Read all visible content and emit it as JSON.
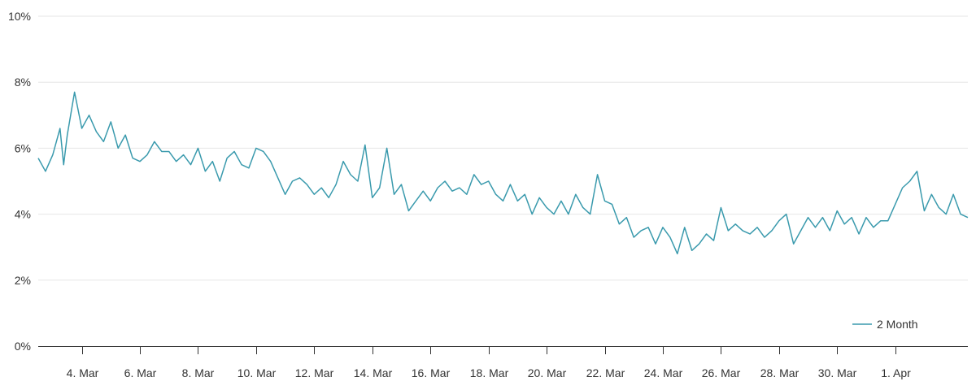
{
  "chart_data": {
    "type": "line",
    "title": "",
    "xlabel": "",
    "ylabel": "",
    "x_range": [
      "2024-03-02T12:00",
      "2024-04-03T12:00"
    ],
    "ylim": [
      0,
      10
    ],
    "y_ticks": [
      {
        "value": 0,
        "label": "0%"
      },
      {
        "value": 2,
        "label": "2%"
      },
      {
        "value": 4,
        "label": "4%"
      },
      {
        "value": 6,
        "label": "6%"
      },
      {
        "value": 8,
        "label": "8%"
      },
      {
        "value": 10,
        "label": "10%"
      }
    ],
    "x_ticks": [
      {
        "date": "2024-03-04",
        "label": "4. Mar"
      },
      {
        "date": "2024-03-06",
        "label": "6. Mar"
      },
      {
        "date": "2024-03-08",
        "label": "8. Mar"
      },
      {
        "date": "2024-03-10",
        "label": "10. Mar"
      },
      {
        "date": "2024-03-12",
        "label": "12. Mar"
      },
      {
        "date": "2024-03-14",
        "label": "14. Mar"
      },
      {
        "date": "2024-03-16",
        "label": "16. Mar"
      },
      {
        "date": "2024-03-18",
        "label": "18. Mar"
      },
      {
        "date": "2024-03-20",
        "label": "20. Mar"
      },
      {
        "date": "2024-03-22",
        "label": "22. Mar"
      },
      {
        "date": "2024-03-24",
        "label": "24. Mar"
      },
      {
        "date": "2024-03-26",
        "label": "26. Mar"
      },
      {
        "date": "2024-03-28",
        "label": "28. Mar"
      },
      {
        "date": "2024-03-30",
        "label": "30. Mar"
      },
      {
        "date": "2024-04-01",
        "label": "1. Apr"
      }
    ],
    "grid": true,
    "legend": {
      "position": "bottom-right"
    },
    "series": [
      {
        "name": "2 Month",
        "color": "#3a9aad",
        "points": [
          [
            "2024-03-02T12:00",
            5.7
          ],
          [
            "2024-03-02T18:00",
            5.3
          ],
          [
            "2024-03-03T00:00",
            5.8
          ],
          [
            "2024-03-03T06:00",
            6.6
          ],
          [
            "2024-03-03T09:00",
            5.5
          ],
          [
            "2024-03-03T12:00",
            6.4
          ],
          [
            "2024-03-03T18:00",
            7.7
          ],
          [
            "2024-03-04T00:00",
            6.6
          ],
          [
            "2024-03-04T06:00",
            7.0
          ],
          [
            "2024-03-04T12:00",
            6.5
          ],
          [
            "2024-03-04T18:00",
            6.2
          ],
          [
            "2024-03-05T00:00",
            6.8
          ],
          [
            "2024-03-05T06:00",
            6.0
          ],
          [
            "2024-03-05T12:00",
            6.4
          ],
          [
            "2024-03-05T18:00",
            5.7
          ],
          [
            "2024-03-06T00:00",
            5.6
          ],
          [
            "2024-03-06T06:00",
            5.8
          ],
          [
            "2024-03-06T12:00",
            6.2
          ],
          [
            "2024-03-06T18:00",
            5.9
          ],
          [
            "2024-03-07T00:00",
            5.9
          ],
          [
            "2024-03-07T06:00",
            5.6
          ],
          [
            "2024-03-07T12:00",
            5.8
          ],
          [
            "2024-03-07T18:00",
            5.5
          ],
          [
            "2024-03-08T00:00",
            6.0
          ],
          [
            "2024-03-08T06:00",
            5.3
          ],
          [
            "2024-03-08T12:00",
            5.6
          ],
          [
            "2024-03-08T18:00",
            5.0
          ],
          [
            "2024-03-09T00:00",
            5.7
          ],
          [
            "2024-03-09T06:00",
            5.9
          ],
          [
            "2024-03-09T12:00",
            5.5
          ],
          [
            "2024-03-09T18:00",
            5.4
          ],
          [
            "2024-03-10T00:00",
            6.0
          ],
          [
            "2024-03-10T06:00",
            5.9
          ],
          [
            "2024-03-10T12:00",
            5.6
          ],
          [
            "2024-03-10T18:00",
            5.1
          ],
          [
            "2024-03-11T00:00",
            4.6
          ],
          [
            "2024-03-11T06:00",
            5.0
          ],
          [
            "2024-03-11T12:00",
            5.1
          ],
          [
            "2024-03-11T18:00",
            4.9
          ],
          [
            "2024-03-12T00:00",
            4.6
          ],
          [
            "2024-03-12T06:00",
            4.8
          ],
          [
            "2024-03-12T12:00",
            4.5
          ],
          [
            "2024-03-12T18:00",
            4.9
          ],
          [
            "2024-03-13T00:00",
            5.6
          ],
          [
            "2024-03-13T06:00",
            5.2
          ],
          [
            "2024-03-13T12:00",
            5.0
          ],
          [
            "2024-03-13T18:00",
            6.1
          ],
          [
            "2024-03-14T00:00",
            4.5
          ],
          [
            "2024-03-14T06:00",
            4.8
          ],
          [
            "2024-03-14T12:00",
            6.0
          ],
          [
            "2024-03-14T18:00",
            4.6
          ],
          [
            "2024-03-15T00:00",
            4.9
          ],
          [
            "2024-03-15T06:00",
            4.1
          ],
          [
            "2024-03-15T12:00",
            4.4
          ],
          [
            "2024-03-15T18:00",
            4.7
          ],
          [
            "2024-03-16T00:00",
            4.4
          ],
          [
            "2024-03-16T06:00",
            4.8
          ],
          [
            "2024-03-16T12:00",
            5.0
          ],
          [
            "2024-03-16T18:00",
            4.7
          ],
          [
            "2024-03-17T00:00",
            4.8
          ],
          [
            "2024-03-17T06:00",
            4.6
          ],
          [
            "2024-03-17T12:00",
            5.2
          ],
          [
            "2024-03-17T18:00",
            4.9
          ],
          [
            "2024-03-18T00:00",
            5.0
          ],
          [
            "2024-03-18T06:00",
            4.6
          ],
          [
            "2024-03-18T12:00",
            4.4
          ],
          [
            "2024-03-18T18:00",
            4.9
          ],
          [
            "2024-03-19T00:00",
            4.4
          ],
          [
            "2024-03-19T06:00",
            4.6
          ],
          [
            "2024-03-19T12:00",
            4.0
          ],
          [
            "2024-03-19T18:00",
            4.5
          ],
          [
            "2024-03-20T00:00",
            4.2
          ],
          [
            "2024-03-20T06:00",
            4.0
          ],
          [
            "2024-03-20T12:00",
            4.4
          ],
          [
            "2024-03-20T18:00",
            4.0
          ],
          [
            "2024-03-21T00:00",
            4.6
          ],
          [
            "2024-03-21T06:00",
            4.2
          ],
          [
            "2024-03-21T12:00",
            4.0
          ],
          [
            "2024-03-21T18:00",
            5.2
          ],
          [
            "2024-03-22T00:00",
            4.4
          ],
          [
            "2024-03-22T06:00",
            4.3
          ],
          [
            "2024-03-22T12:00",
            3.7
          ],
          [
            "2024-03-22T18:00",
            3.9
          ],
          [
            "2024-03-23T00:00",
            3.3
          ],
          [
            "2024-03-23T06:00",
            3.5
          ],
          [
            "2024-03-23T12:00",
            3.6
          ],
          [
            "2024-03-23T18:00",
            3.1
          ],
          [
            "2024-03-24T00:00",
            3.6
          ],
          [
            "2024-03-24T06:00",
            3.3
          ],
          [
            "2024-03-24T12:00",
            2.8
          ],
          [
            "2024-03-24T18:00",
            3.6
          ],
          [
            "2024-03-25T00:00",
            2.9
          ],
          [
            "2024-03-25T06:00",
            3.1
          ],
          [
            "2024-03-25T12:00",
            3.4
          ],
          [
            "2024-03-25T18:00",
            3.2
          ],
          [
            "2024-03-26T00:00",
            4.2
          ],
          [
            "2024-03-26T06:00",
            3.5
          ],
          [
            "2024-03-26T12:00",
            3.7
          ],
          [
            "2024-03-26T18:00",
            3.5
          ],
          [
            "2024-03-27T00:00",
            3.4
          ],
          [
            "2024-03-27T06:00",
            3.6
          ],
          [
            "2024-03-27T12:00",
            3.3
          ],
          [
            "2024-03-27T18:00",
            3.5
          ],
          [
            "2024-03-28T00:00",
            3.8
          ],
          [
            "2024-03-28T06:00",
            4.0
          ],
          [
            "2024-03-28T12:00",
            3.1
          ],
          [
            "2024-03-28T18:00",
            3.5
          ],
          [
            "2024-03-29T00:00",
            3.9
          ],
          [
            "2024-03-29T06:00",
            3.6
          ],
          [
            "2024-03-29T12:00",
            3.9
          ],
          [
            "2024-03-29T18:00",
            3.5
          ],
          [
            "2024-03-30T00:00",
            4.1
          ],
          [
            "2024-03-30T06:00",
            3.7
          ],
          [
            "2024-03-30T12:00",
            3.9
          ],
          [
            "2024-03-30T18:00",
            3.4
          ],
          [
            "2024-03-31T00:00",
            3.9
          ],
          [
            "2024-03-31T06:00",
            3.6
          ],
          [
            "2024-03-31T12:00",
            3.8
          ],
          [
            "2024-03-31T18:00",
            3.8
          ],
          [
            "2024-04-01T00:00",
            4.3
          ],
          [
            "2024-04-01T06:00",
            4.8
          ],
          [
            "2024-04-01T12:00",
            5.0
          ],
          [
            "2024-04-01T18:00",
            5.3
          ],
          [
            "2024-04-02T00:00",
            4.1
          ],
          [
            "2024-04-02T06:00",
            4.6
          ],
          [
            "2024-04-02T12:00",
            4.2
          ],
          [
            "2024-04-02T18:00",
            4.0
          ],
          [
            "2024-04-03T00:00",
            4.6
          ],
          [
            "2024-04-03T06:00",
            4.0
          ],
          [
            "2024-04-03T12:00",
            3.9
          ]
        ]
      }
    ]
  }
}
